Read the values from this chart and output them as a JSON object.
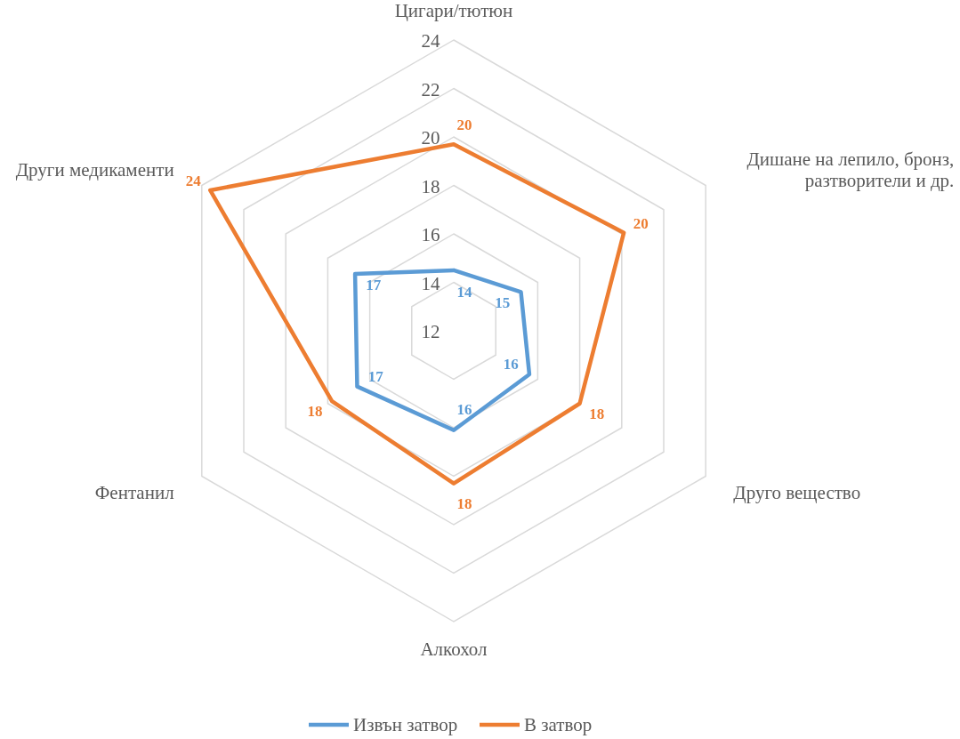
{
  "chart_data": {
    "type": "radar",
    "categories": [
      "Цигари/тютюн",
      "Дишане на лепило, бронз, разтворители и др.",
      "Друго вещество",
      "Алкохол",
      "Фентанил",
      "Други медикаменти"
    ],
    "series": [
      {
        "name": "Извън затвор",
        "color": "#5b9bd5",
        "values": [
          14.5,
          15.2,
          15.6,
          16.1,
          16.6,
          16.7
        ],
        "value_labels": [
          "14",
          "15",
          "16",
          "16",
          "17",
          "17"
        ]
      },
      {
        "name": "В затвор",
        "color": "#ed7d31",
        "values": [
          19.7,
          20.1,
          18.0,
          18.3,
          17.8,
          23.6
        ],
        "value_labels": [
          "20",
          "20",
          "18",
          "18",
          "18",
          "24"
        ]
      }
    ],
    "ylim": [
      12,
      24
    ],
    "yticks": [
      12,
      14,
      16,
      18,
      20,
      22,
      24
    ],
    "grid": true,
    "legend": "bottom",
    "marker": "none",
    "line_style": "solid"
  }
}
